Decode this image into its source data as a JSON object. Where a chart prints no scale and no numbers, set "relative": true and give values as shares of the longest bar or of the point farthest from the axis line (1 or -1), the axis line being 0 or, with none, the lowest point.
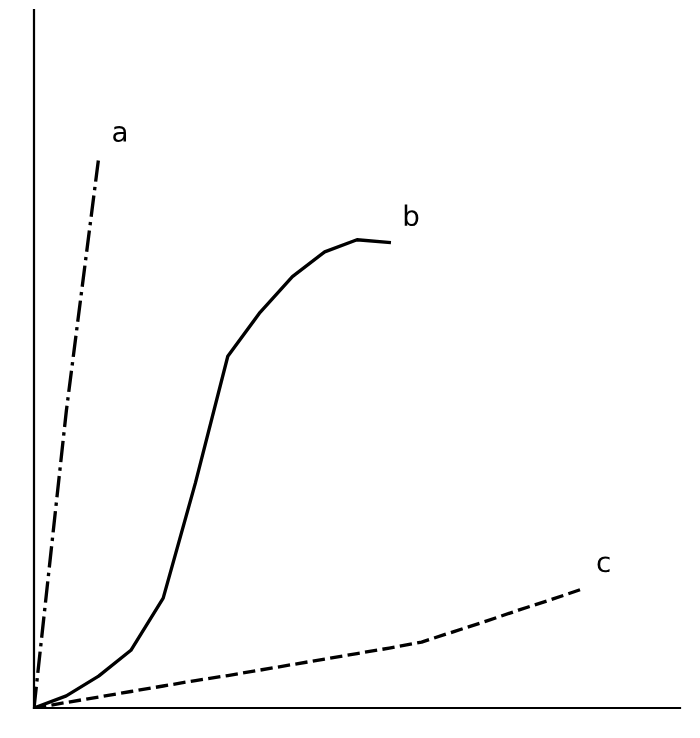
{
  "chart_data": {
    "type": "line",
    "relative": true,
    "tick_labels": false,
    "marker": "none",
    "categories": [
      null,
      null,
      null,
      null,
      null,
      null,
      null,
      null,
      null,
      null,
      null,
      null,
      null,
      null,
      null,
      null,
      null,
      null,
      null,
      null,
      null
    ],
    "series": [
      {
        "name": "a",
        "color": "#000000",
        "line_style": "dashdot",
        "values": [
          0,
          0.54,
          1.0,
          null,
          null,
          null,
          null,
          null,
          null,
          null,
          null,
          null,
          null,
          null,
          null,
          null,
          null,
          null,
          null,
          null,
          null
        ]
      },
      {
        "name": "b",
        "color": "#000000",
        "line_style": "solid",
        "values": [
          0,
          0.022,
          0.058,
          0.105,
          0.2,
          0.41,
          0.64,
          0.72,
          0.785,
          0.83,
          0.852,
          0.847,
          null,
          null,
          null,
          null,
          null,
          null,
          null,
          null,
          null
        ]
      },
      {
        "name": "c",
        "color": "#000000",
        "line_style": "dashed",
        "values": [
          0,
          0.01,
          0.02,
          0.03,
          0.04,
          0.05,
          0.059,
          0.069,
          0.079,
          0.089,
          0.099,
          0.109,
          0.12,
          0.139,
          0.158,
          0.178,
          0.197,
          0.217,
          null,
          null,
          null
        ]
      }
    ]
  }
}
